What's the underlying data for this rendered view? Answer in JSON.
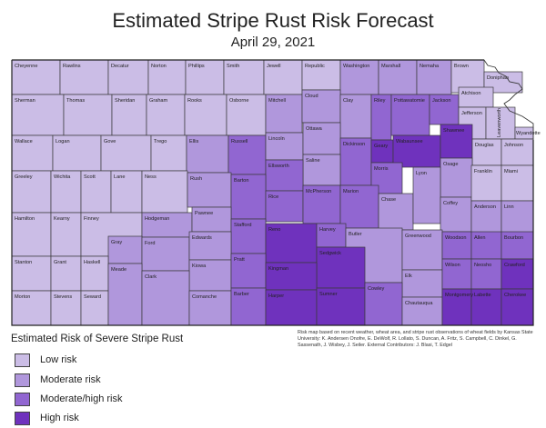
{
  "title": "Estimated Stripe Rust Risk Forecast",
  "subtitle": "April 29, 2021",
  "credit": "Risk map based on recent weather, wheat area, and stripe rust observations of wheat fields by Kansas State University: K. Andersen Onofre, E. DeWolf, R. Lollato, S. Duncan, A. Fritz, S. Campbell, C. Dinkel, G. Sassenath, J. Wisbey, J. Seiler. External Contributors: J. Blasi, T. Edgel",
  "legend": {
    "title": "Estimated Risk of Severe Stripe Rust",
    "items": [
      {
        "key": "low",
        "label": "Low risk",
        "color": "#cbbde6"
      },
      {
        "key": "moderate",
        "label": "Moderate risk",
        "color": "#b097dc"
      },
      {
        "key": "modhigh",
        "label": "Moderate/high risk",
        "color": "#9166d1"
      },
      {
        "key": "high",
        "label": "High risk",
        "color": "#6f32bd"
      }
    ]
  },
  "counties": [
    {
      "name": "Cheyenne",
      "risk": "low"
    },
    {
      "name": "Rawlins",
      "risk": "low"
    },
    {
      "name": "Decatur",
      "risk": "low"
    },
    {
      "name": "Norton",
      "risk": "low"
    },
    {
      "name": "Phillips",
      "risk": "low"
    },
    {
      "name": "Smith",
      "risk": "low"
    },
    {
      "name": "Jewell",
      "risk": "low"
    },
    {
      "name": "Republic",
      "risk": "low"
    },
    {
      "name": "Washington",
      "risk": "moderate"
    },
    {
      "name": "Marshall",
      "risk": "moderate"
    },
    {
      "name": "Nemaha",
      "risk": "moderate"
    },
    {
      "name": "Brown",
      "risk": "low"
    },
    {
      "name": "Doniphan",
      "risk": "low"
    },
    {
      "name": "Sherman",
      "risk": "low"
    },
    {
      "name": "Thomas",
      "risk": "low"
    },
    {
      "name": "Sheridan",
      "risk": "low"
    },
    {
      "name": "Graham",
      "risk": "low"
    },
    {
      "name": "Rooks",
      "risk": "low"
    },
    {
      "name": "Osborne",
      "risk": "low"
    },
    {
      "name": "Mitchell",
      "risk": "moderate"
    },
    {
      "name": "Cloud",
      "risk": "moderate"
    },
    {
      "name": "Clay",
      "risk": "moderate"
    },
    {
      "name": "Riley",
      "risk": "modhigh"
    },
    {
      "name": "Pottawatomie",
      "risk": "modhigh"
    },
    {
      "name": "Jackson",
      "risk": "modhigh"
    },
    {
      "name": "Atchison",
      "risk": "low"
    },
    {
      "name": "Jefferson",
      "risk": "low"
    },
    {
      "name": "Leavenworth",
      "risk": "low"
    },
    {
      "name": "Wyandotte",
      "risk": "low"
    },
    {
      "name": "Wallace",
      "risk": "low"
    },
    {
      "name": "Logan",
      "risk": "low"
    },
    {
      "name": "Gove",
      "risk": "low"
    },
    {
      "name": "Trego",
      "risk": "low"
    },
    {
      "name": "Ellis",
      "risk": "moderate"
    },
    {
      "name": "Russell",
      "risk": "modhigh"
    },
    {
      "name": "Lincoln",
      "risk": "moderate"
    },
    {
      "name": "Ottawa",
      "risk": "moderate"
    },
    {
      "name": "Dickinson",
      "risk": "modhigh"
    },
    {
      "name": "Geary",
      "risk": "high"
    },
    {
      "name": "Wabaunsee",
      "risk": "high"
    },
    {
      "name": "Shawnee",
      "risk": "high"
    },
    {
      "name": "Douglas",
      "risk": "low"
    },
    {
      "name": "Johnson",
      "risk": "low"
    },
    {
      "name": "Saline",
      "risk": "moderate"
    },
    {
      "name": "Morris",
      "risk": "modhigh"
    },
    {
      "name": "Osage",
      "risk": "moderate"
    },
    {
      "name": "Ellsworth",
      "risk": "modhigh"
    },
    {
      "name": "Greeley",
      "risk": "low"
    },
    {
      "name": "Wichita",
      "risk": "low"
    },
    {
      "name": "Scott",
      "risk": "low"
    },
    {
      "name": "Lane",
      "risk": "low"
    },
    {
      "name": "Ness",
      "risk": "low"
    },
    {
      "name": "Rush",
      "risk": "moderate"
    },
    {
      "name": "Barton",
      "risk": "modhigh"
    },
    {
      "name": "Rice",
      "risk": "modhigh"
    },
    {
      "name": "McPherson",
      "risk": "modhigh"
    },
    {
      "name": "Marion",
      "risk": "modhigh"
    },
    {
      "name": "Chase",
      "risk": "moderate"
    },
    {
      "name": "Lyon",
      "risk": "moderate"
    },
    {
      "name": "Coffey",
      "risk": "moderate"
    },
    {
      "name": "Franklin",
      "risk": "low"
    },
    {
      "name": "Miami",
      "risk": "low"
    },
    {
      "name": "Anderson",
      "risk": "moderate"
    },
    {
      "name": "Linn",
      "risk": "moderate"
    },
    {
      "name": "Hamilton",
      "risk": "low"
    },
    {
      "name": "Kearny",
      "risk": "low"
    },
    {
      "name": "Finney",
      "risk": "low"
    },
    {
      "name": "Hodgeman",
      "risk": "moderate"
    },
    {
      "name": "Pawnee",
      "risk": "moderate"
    },
    {
      "name": "Stafford",
      "risk": "modhigh"
    },
    {
      "name": "Reno",
      "risk": "high"
    },
    {
      "name": "Harvey",
      "risk": "modhigh"
    },
    {
      "name": "Butler",
      "risk": "moderate"
    },
    {
      "name": "Greenwood",
      "risk": "moderate"
    },
    {
      "name": "Woodson",
      "risk": "modhigh"
    },
    {
      "name": "Allen",
      "risk": "modhigh"
    },
    {
      "name": "Bourbon",
      "risk": "modhigh"
    },
    {
      "name": "Gray",
      "risk": "moderate"
    },
    {
      "name": "Ford",
      "risk": "moderate"
    },
    {
      "name": "Edwards",
      "risk": "moderate"
    },
    {
      "name": "Sedgwick",
      "risk": "high"
    },
    {
      "name": "Stanton",
      "risk": "low"
    },
    {
      "name": "Grant",
      "risk": "low"
    },
    {
      "name": "Haskell",
      "risk": "low"
    },
    {
      "name": "Kiowa",
      "risk": "moderate"
    },
    {
      "name": "Pratt",
      "risk": "modhigh"
    },
    {
      "name": "Kingman",
      "risk": "high"
    },
    {
      "name": "Elk",
      "risk": "moderate"
    },
    {
      "name": "Wilson",
      "risk": "modhigh"
    },
    {
      "name": "Neosho",
      "risk": "modhigh"
    },
    {
      "name": "Crawford",
      "risk": "high"
    },
    {
      "name": "Morton",
      "risk": "low"
    },
    {
      "name": "Stevens",
      "risk": "low"
    },
    {
      "name": "Seward",
      "risk": "low"
    },
    {
      "name": "Meade",
      "risk": "moderate"
    },
    {
      "name": "Clark",
      "risk": "moderate"
    },
    {
      "name": "Comanche",
      "risk": "moderate"
    },
    {
      "name": "Barber",
      "risk": "modhigh"
    },
    {
      "name": "Harper",
      "risk": "high"
    },
    {
      "name": "Sumner",
      "risk": "high"
    },
    {
      "name": "Cowley",
      "risk": "modhigh"
    },
    {
      "name": "Chautauqua",
      "risk": "moderate"
    },
    {
      "name": "Montgomery",
      "risk": "high"
    },
    {
      "name": "Labette",
      "risk": "high"
    },
    {
      "name": "Cherokee",
      "risk": "high"
    }
  ]
}
